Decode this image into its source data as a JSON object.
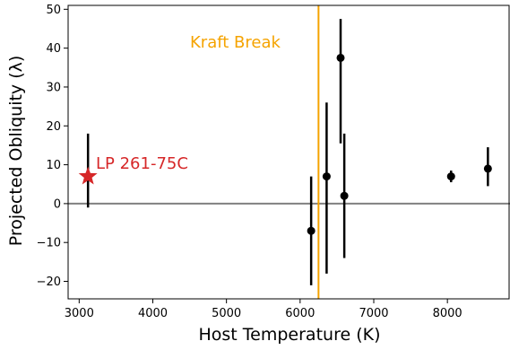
{
  "chart_data": {
    "type": "scatter",
    "xlabel": "Host Temperature (K)",
    "ylabel": "Projected Obliquity (λ)",
    "xlim": [
      2850,
      8850
    ],
    "ylim": [
      -24.5,
      51
    ],
    "xticks": [
      3000,
      4000,
      5000,
      6000,
      7000,
      8000
    ],
    "yticks": [
      -20,
      -10,
      0,
      10,
      20,
      30,
      40,
      50
    ],
    "tick_labels": {
      "x": [
        "3000",
        "4000",
        "5000",
        "6000",
        "7000",
        "8000"
      ],
      "y": [
        "−20",
        "−10",
        "0",
        "10",
        "20",
        "30",
        "40",
        "50"
      ]
    },
    "reference_line": {
      "y": 0,
      "color": "#808080"
    },
    "kraft_break": {
      "x": 6250,
      "label": "Kraft Break",
      "color": "#f5a300"
    },
    "highlight": {
      "label": "LP 261-75C",
      "x": 3120,
      "y": 7,
      "y_low": -1,
      "y_high": 18,
      "marker": "star",
      "color": "#d62728"
    },
    "series": [
      {
        "marker": "circle",
        "color": "#000000",
        "points": [
          {
            "x": 6150,
            "y": -7,
            "y_low": -21,
            "y_high": 7
          },
          {
            "x": 6360,
            "y": 7,
            "y_low": -18,
            "y_high": 26
          },
          {
            "x": 6550,
            "y": 37.5,
            "y_low": 15.5,
            "y_high": 47.5
          },
          {
            "x": 6600,
            "y": 2,
            "y_low": -14,
            "y_high": 18
          },
          {
            "x": 8050,
            "y": 7,
            "y_low": 5.5,
            "y_high": 8.5
          },
          {
            "x": 8550,
            "y": 9,
            "y_low": 4.5,
            "y_high": 14.5
          }
        ]
      }
    ],
    "grid": false
  }
}
